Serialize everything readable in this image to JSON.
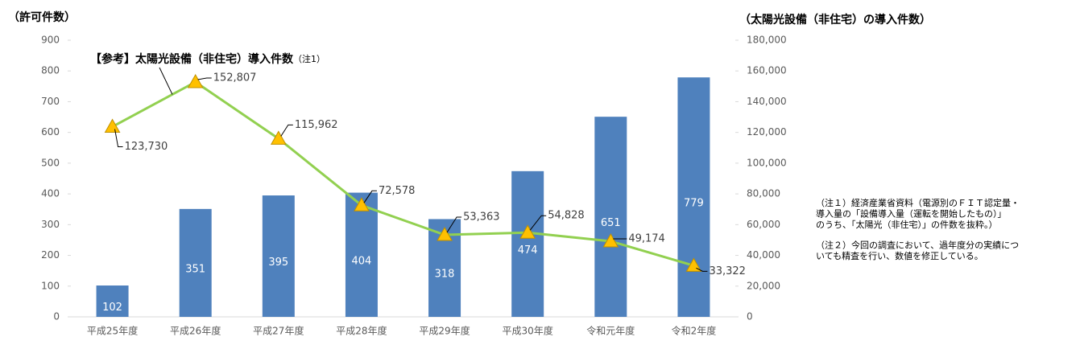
{
  "chart_data": {
    "type": "bar",
    "y_title": "（許可件数）",
    "y2_title": "（太陽光設備（非住宅）の導入件数）",
    "categories": [
      "平成25年度",
      "平成26年度",
      "平成27年度",
      "平成28年度",
      "平成29年度",
      "平成30年度",
      "令和元年度",
      "令和2年度"
    ],
    "series": [
      {
        "name": "許可件数",
        "type": "bar",
        "color": "#4f81bd",
        "values": [
          102,
          351,
          395,
          404,
          318,
          474,
          651,
          779
        ]
      },
      {
        "name": "【参考】太陽光設備（非住宅）導入件数",
        "name_note": "（注1）",
        "type": "line",
        "axis": "y2",
        "color": "#92d050",
        "marker_color": "#ffc000",
        "values": [
          123730,
          152807,
          115962,
          72578,
          53363,
          54828,
          49174,
          33322
        ],
        "value_labels": [
          "123,730",
          "152,807",
          "115,962",
          "72,578",
          "53,363",
          "54,828",
          "49,174",
          "33,322"
        ]
      }
    ],
    "ylim": [
      0,
      900
    ],
    "yticks": [
      0,
      100,
      200,
      300,
      400,
      500,
      600,
      700,
      800,
      900
    ],
    "y2lim": [
      0,
      180000
    ],
    "y2ticks": [
      0,
      {
        "value": 20000,
        "label": "20,000"
      },
      {
        "value": 40000,
        "label": "40,000"
      },
      {
        "value": 60000,
        "label": "60,000"
      },
      {
        "value": 80000,
        "label": "80,000"
      },
      {
        "value": 100000,
        "label": "100,000"
      },
      {
        "value": 120000,
        "label": "120,000"
      },
      {
        "value": 140000,
        "label": "140,000"
      },
      {
        "value": 160000,
        "label": "160,000"
      },
      {
        "value": 180000,
        "label": "180,000"
      }
    ],
    "grid": false,
    "notes": [
      [
        "（注１）経済産業省資料（電源別のＦＩＴ認定量・",
        "導入量の「設備導入量（運転を開始したもの）」",
        "のうち、「太陽光（非住宅）」の件数を抜粋。）"
      ],
      [
        "（注２）今回の調査において、過年度分の実績につ",
        "いても精査を行い、数値を修正している。"
      ]
    ]
  }
}
